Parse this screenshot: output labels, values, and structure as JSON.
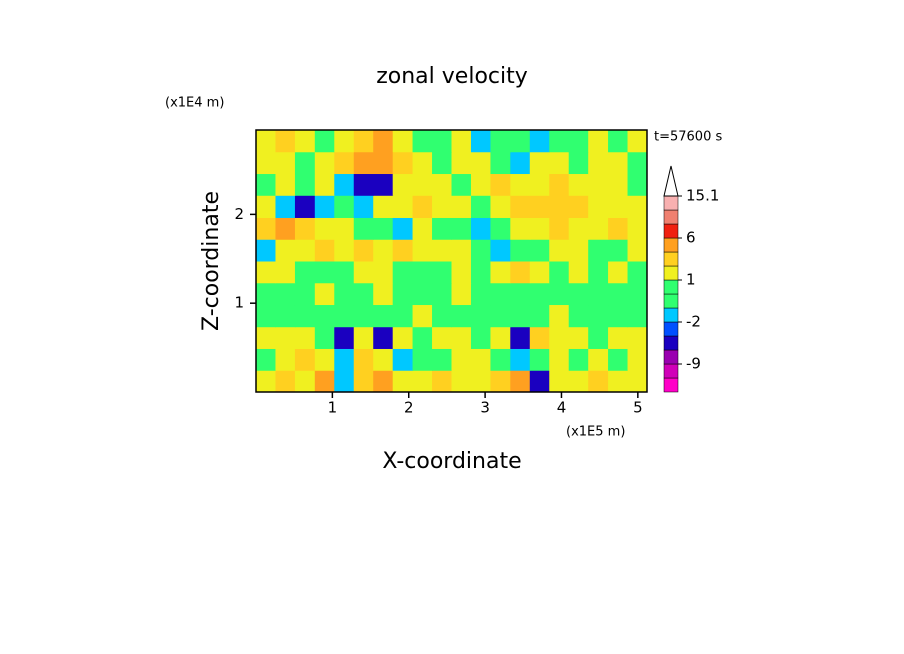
{
  "chart_data": {
    "type": "contour",
    "title": "zonal velocity",
    "x_label": "X-coordinate",
    "y_label": "Z-coordinate",
    "x_unit": "(x1E5 m)",
    "y_unit": "(x1E4 m)",
    "annotation": "t=57600 s",
    "xlim": [
      0,
      5.12
    ],
    "ylim": [
      0,
      2.95
    ],
    "xticks": [
      1,
      2,
      3,
      4,
      5
    ],
    "yticks": [
      1,
      2
    ],
    "x": [
      0.13,
      0.38,
      0.64,
      0.9,
      1.15,
      1.41,
      1.66,
      1.92,
      2.18,
      2.43,
      2.69,
      2.94,
      3.2,
      3.46,
      3.71,
      3.97,
      4.22,
      4.48,
      4.74,
      4.99
    ],
    "y": [
      0.12,
      0.37,
      0.61,
      0.86,
      1.11,
      1.35,
      1.6,
      1.84,
      2.09,
      2.34,
      2.58,
      2.83
    ],
    "z": [
      [
        1.5,
        2.5,
        1.5,
        4,
        -1.5,
        2.5,
        4,
        1.5,
        1.5,
        2.5,
        1.5,
        1.5,
        2.5,
        4,
        -3.5,
        1.5,
        1.5,
        2.5,
        1.5,
        1.5
      ],
      [
        0.5,
        1.5,
        2.5,
        1.5,
        -1.5,
        2.5,
        1.5,
        -1.5,
        0.5,
        -0.5,
        1.5,
        1.5,
        0.5,
        -1.5,
        0.5,
        1.5,
        0.5,
        1.5,
        0.5,
        1.5
      ],
      [
        1.5,
        1.5,
        1.5,
        0.5,
        -4,
        1.5,
        -4,
        1.5,
        0.5,
        1.5,
        1.5,
        0.5,
        1.5,
        -3.5,
        2.5,
        1.5,
        1.5,
        0.5,
        1.5,
        1.5
      ],
      [
        0.5,
        0.5,
        0.5,
        0.5,
        0.5,
        0.5,
        -0.5,
        0.5,
        1.5,
        0.5,
        0.5,
        0.5,
        0.5,
        0.5,
        0.5,
        1.5,
        0.5,
        0.5,
        0.5,
        0.5
      ],
      [
        0.5,
        0.5,
        0.5,
        1.5,
        0.5,
        0.5,
        1.5,
        0.5,
        0.5,
        0.5,
        1.5,
        0.5,
        0.5,
        0.5,
        0.5,
        0.5,
        -0.5,
        0.5,
        0.5,
        0.5
      ],
      [
        1.5,
        1.5,
        0.5,
        0.5,
        0.5,
        1.5,
        1.5,
        0.5,
        0.5,
        0.5,
        1.5,
        0.5,
        1.5,
        2.5,
        1.5,
        0.5,
        1.5,
        0.5,
        1.5,
        0.5
      ],
      [
        -1.5,
        1.5,
        1.5,
        2.5,
        1.5,
        2.5,
        1.5,
        2.5,
        1.5,
        1.5,
        1.5,
        0.5,
        -1.5,
        0.5,
        0.5,
        1.5,
        1.5,
        0.5,
        0.5,
        1.5
      ],
      [
        2.5,
        4,
        2.5,
        1.5,
        1.5,
        0.5,
        0.5,
        -1.5,
        1.5,
        0.5,
        -0.5,
        -1.5,
        0.5,
        1.5,
        1.5,
        2.5,
        1.5,
        1.5,
        2.5,
        1.5
      ],
      [
        1.5,
        -1.5,
        -3.5,
        -1.5,
        -0.5,
        -1.5,
        1.5,
        1.5,
        2.5,
        1.5,
        1.5,
        0.5,
        1.5,
        2.5,
        2.5,
        2.5,
        2.5,
        1.5,
        1.5,
        1.5
      ],
      [
        0.5,
        1.5,
        0.5,
        1.5,
        -1.5,
        -4,
        -3.5,
        1.5,
        1.5,
        1.5,
        0.5,
        1.5,
        2.5,
        1.5,
        1.5,
        2.5,
        1.5,
        1.5,
        1.5,
        0.5
      ],
      [
        1.5,
        1.5,
        0.5,
        1.5,
        2.5,
        4,
        5,
        2.5,
        1.5,
        0.5,
        1.5,
        1.5,
        0.5,
        -1.5,
        1.5,
        1.5,
        0.5,
        1.5,
        1.5,
        0.5
      ],
      [
        1.5,
        2.5,
        1.5,
        0.5,
        1.5,
        2.5,
        4,
        1.5,
        0.5,
        0.5,
        1.5,
        -1.5,
        0.5,
        0.5,
        -1.5,
        0.5,
        0.5,
        1.5,
        0.5,
        1.5
      ]
    ],
    "colorbar": {
      "levels": [
        -15,
        -12,
        -9,
        -6,
        -3,
        -2,
        -1,
        0,
        1,
        2,
        3,
        6,
        9,
        12,
        15.1
      ],
      "colors": [
        "#ff00c8",
        "#d000b8",
        "#9a00b0",
        "#1a00c0",
        "#0050ff",
        "#00c8ff",
        "#30ff70",
        "#30ff70",
        "#f0f020",
        "#ffd020",
        "#ffa020",
        "#f02010",
        "#f08070",
        "#f8b0b0"
      ],
      "ticks": [
        15.1,
        6,
        1,
        -2,
        -9
      ]
    }
  }
}
